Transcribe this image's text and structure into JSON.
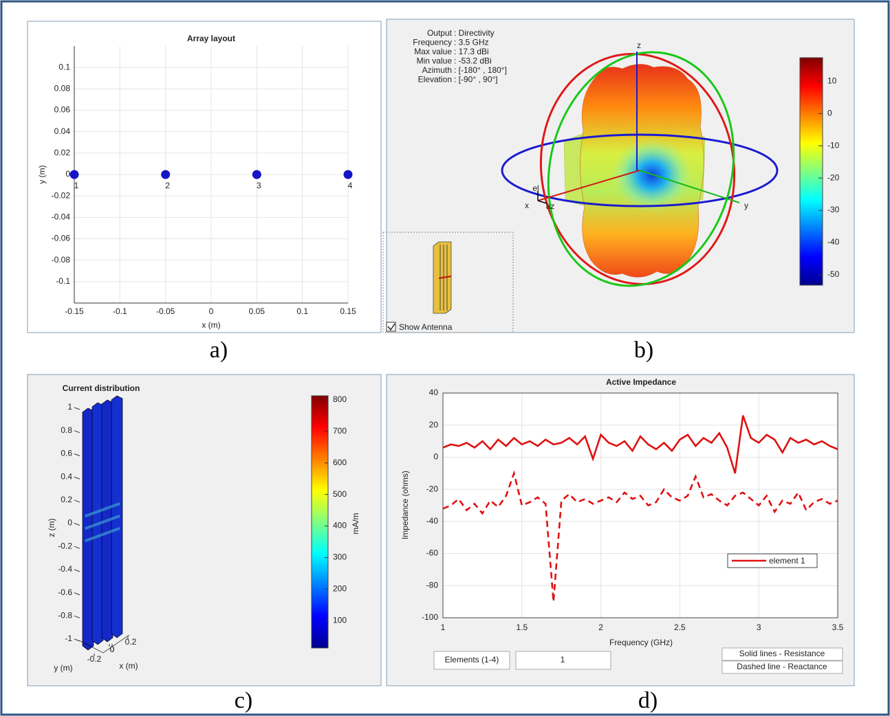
{
  "captions": [
    "a)",
    "b)",
    "c)",
    "d)"
  ],
  "chart_data": [
    {
      "type": "scatter",
      "title": "Array layout",
      "x_label": "x (m)",
      "y_label": "y (m)",
      "x": [
        -0.15,
        -0.05,
        0.05,
        0.15
      ],
      "values": [
        0,
        0,
        0,
        0
      ],
      "point_labels": [
        "1",
        "2",
        "3",
        "4"
      ],
      "color": "#1414c8",
      "xlim": [
        -0.15,
        0.15
      ],
      "ylim": [
        -0.12,
        0.12
      ],
      "xticks": [
        -0.15,
        -0.1,
        -0.05,
        0,
        0.05,
        0.1,
        0.15
      ],
      "yticks": [
        0.1,
        0.08,
        0.06,
        0.04,
        0.02,
        0,
        -0.02,
        -0.04,
        -0.06,
        -0.08,
        -0.1
      ],
      "grid": true
    },
    {
      "type": "pattern3d",
      "info": [
        [
          "Output",
          ": Directivity"
        ],
        [
          "Frequency",
          ": 3.5 GHz"
        ],
        [
          "Max value",
          ": 17.3 dBi"
        ],
        [
          "Min value",
          ": -53.2 dBi"
        ],
        [
          "Azimuth",
          ": [-180° , 180°]"
        ],
        [
          "Elevation",
          ": [-90° , 90°]"
        ]
      ],
      "axis_labels": [
        "z",
        "x",
        "y",
        "el",
        "az"
      ],
      "clim": [
        -53.2,
        17.3
      ],
      "cticks": [
        10,
        0,
        -10,
        -20,
        -30,
        -40,
        -50
      ],
      "show_antenna": "Show Antenna"
    },
    {
      "type": "surface3d",
      "title": "Current distribution",
      "z_label": "z (m)",
      "x_label": "x (m)",
      "y_label": "y (m)",
      "zlim": [
        -1,
        1
      ],
      "zticks": [
        1,
        0.8,
        0.6,
        0.4,
        0.2,
        0,
        -0.2,
        -0.4,
        -0.6,
        -0.8,
        -1
      ],
      "yticks": [
        -0.2,
        0
      ],
      "xticks": [
        0,
        0.2
      ],
      "clim": [
        13,
        813
      ],
      "cticks": [
        800,
        700,
        600,
        500,
        400,
        300,
        200,
        100
      ],
      "colorbar_label": "mA/m"
    },
    {
      "type": "line",
      "title": "Active Impedance",
      "x_label": "Frequency (GHz)",
      "y_label": "Impedance (ohms)",
      "x": [
        1.0,
        1.05,
        1.1,
        1.15,
        1.2,
        1.25,
        1.3,
        1.35,
        1.4,
        1.45,
        1.5,
        1.55,
        1.6,
        1.65,
        1.7,
        1.75,
        1.8,
        1.85,
        1.9,
        1.95,
        2.0,
        2.05,
        2.1,
        2.15,
        2.2,
        2.25,
        2.3,
        2.35,
        2.4,
        2.45,
        2.5,
        2.55,
        2.6,
        2.65,
        2.7,
        2.75,
        2.8,
        2.85,
        2.9,
        2.95,
        3.0,
        3.05,
        3.1,
        3.15,
        3.2,
        3.25,
        3.3,
        3.35,
        3.4,
        3.45,
        3.5
      ],
      "series": [
        {
          "name": "element 1",
          "color": "#e01010",
          "dash": false,
          "values": [
            6,
            8,
            7,
            9,
            6,
            10,
            5,
            11,
            7,
            12,
            8,
            10,
            7,
            11,
            8,
            9,
            12,
            8,
            13,
            -1,
            14,
            9,
            7,
            10,
            4,
            13,
            8,
            5,
            9,
            4,
            11,
            14,
            7,
            12,
            9,
            15,
            6,
            -10,
            26,
            12,
            9,
            14,
            11,
            3,
            12,
            9,
            11,
            8,
            10,
            7,
            5
          ]
        },
        {
          "color": "#e01010",
          "dash": true,
          "values": [
            -32,
            -30,
            -26,
            -33,
            -29,
            -35,
            -27,
            -31,
            -24,
            -10,
            -30,
            -28,
            -25,
            -29,
            -90,
            -27,
            -23,
            -28,
            -26,
            -29,
            -27,
            -25,
            -28,
            -22,
            -26,
            -24,
            -30,
            -28,
            -20,
            -25,
            -27,
            -24,
            -12,
            -25,
            -23,
            -27,
            -30,
            -24,
            -22,
            -26,
            -30,
            -24,
            -34,
            -27,
            -29,
            -22,
            -33,
            -28,
            -26,
            -29,
            -27
          ]
        }
      ],
      "xlim": [
        1,
        3.5
      ],
      "ylim": [
        -100,
        40
      ],
      "xticks": [
        1,
        1.5,
        2,
        2.5,
        3,
        3.5
      ],
      "yticks": [
        40,
        20,
        0,
        -20,
        -40,
        -60,
        -80,
        -100
      ],
      "grid": true,
      "legend": "lower-right",
      "controls": {
        "elements_label": "Elements (1-4)",
        "element_value": "1",
        "solid_note": "Solid lines - Resistance",
        "dashed_note": "Dashed line - Reactance"
      }
    }
  ]
}
